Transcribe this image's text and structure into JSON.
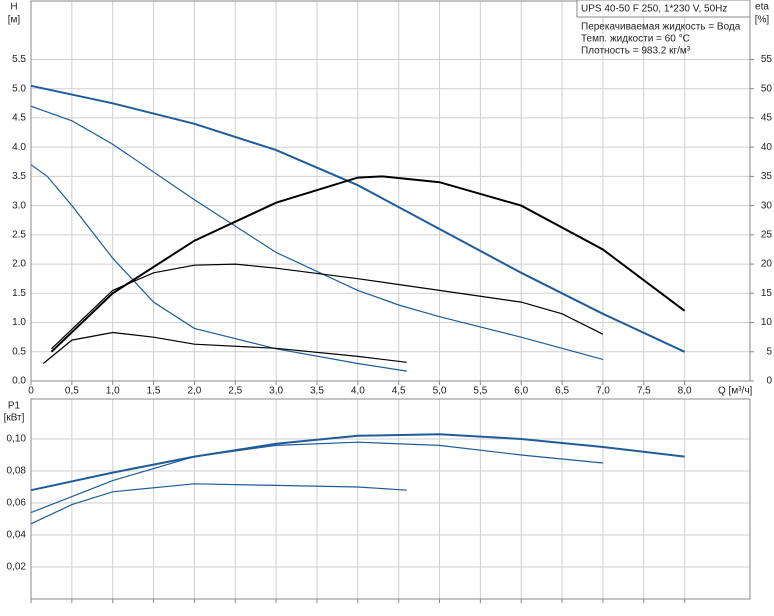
{
  "chart_data": [
    {
      "type": "line",
      "y_label": "H",
      "y_unit": "[м]",
      "y2_label": "eta",
      "y2_unit": "[%]",
      "x_label": "Q [м³/ч]",
      "legend_title": "UPS 40-50 F 250, 1*230 V, 50Hz",
      "notes": [
        "Перекачиваемая жидкость = Вода",
        "Темп. жидкости = 60 °C",
        "Плотность = 983.2 кг/м³"
      ],
      "xlim": [
        0,
        8.8
      ],
      "ylim": [
        0,
        6.5
      ],
      "y2lim": [
        0,
        65
      ],
      "grid": true,
      "xticks": [
        0,
        {
          "value": 0.5,
          "label": "0,5"
        },
        {
          "value": 1,
          "label": "1,0"
        },
        {
          "value": 1.5,
          "label": "1,5"
        },
        {
          "value": 2,
          "label": "2,0"
        },
        {
          "value": 2.5,
          "label": "2,5"
        },
        {
          "value": 3,
          "label": "3,0"
        },
        {
          "value": 3.5,
          "label": "3,5"
        },
        {
          "value": 4,
          "label": "4,0"
        },
        {
          "value": 4.5,
          "label": "4,5"
        },
        {
          "value": 5,
          "label": "5,0"
        },
        {
          "value": 5.5,
          "label": "5,5"
        },
        {
          "value": 6,
          "label": "6,0"
        },
        {
          "value": 6.5,
          "label": "6,5"
        },
        {
          "value": 7,
          "label": "7,0"
        },
        {
          "value": 7.5,
          "label": "7,5"
        },
        {
          "value": 8,
          "label": "8,0"
        }
      ],
      "yticks": [
        {
          "value": 0,
          "label": "0.0"
        },
        {
          "value": 0.5,
          "label": "0.5"
        },
        {
          "value": 1,
          "label": "1.0"
        },
        {
          "value": 1.5,
          "label": "1.5"
        },
        {
          "value": 2,
          "label": "2.0"
        },
        {
          "value": 2.5,
          "label": "2.5"
        },
        {
          "value": 3,
          "label": "3.0"
        },
        {
          "value": 3.5,
          "label": "3.5"
        },
        {
          "value": 4,
          "label": "4.0"
        },
        {
          "value": 4.5,
          "label": "4.5"
        },
        {
          "value": 5,
          "label": "5.0"
        },
        {
          "value": 5.5,
          "label": "5.5"
        }
      ],
      "y2ticks": [
        0,
        5,
        10,
        15,
        20,
        25,
        30,
        35,
        40,
        45,
        50,
        55
      ],
      "series": [
        {
          "color": "#1f5c99",
          "width": 2,
          "x": [
            0,
            1,
            2,
            3,
            4,
            5,
            6,
            7,
            8
          ],
          "values": [
            5.05,
            4.75,
            4.4,
            3.95,
            3.35,
            2.6,
            1.85,
            1.15,
            0.5
          ]
        },
        {
          "color": "#1f5c99",
          "width": 1.2,
          "x": [
            0,
            0.5,
            1,
            2,
            3,
            4,
            4.5,
            5,
            6,
            7
          ],
          "values": [
            4.7,
            4.45,
            4.05,
            3.1,
            2.2,
            1.55,
            1.3,
            1.1,
            0.75,
            0.37
          ]
        },
        {
          "color": "#1f5c99",
          "width": 1.2,
          "x": [
            0,
            0.2,
            0.5,
            1,
            1.5,
            2,
            3,
            4,
            4.6
          ],
          "values": [
            3.7,
            3.5,
            3.0,
            2.1,
            1.35,
            0.9,
            0.55,
            0.3,
            0.17
          ]
        },
        {
          "color": "#000000",
          "width": 2,
          "axis": "y2",
          "x": [
            0.25,
            1,
            2,
            3,
            4,
            4.3,
            5,
            6,
            7,
            8
          ],
          "values": [
            5,
            15,
            24,
            30.5,
            34.8,
            35,
            34,
            30,
            22.5,
            12
          ]
        },
        {
          "color": "#000000",
          "width": 1.2,
          "axis": "y2",
          "x": [
            0.25,
            1,
            1.5,
            2,
            2.5,
            3,
            4,
            5,
            6,
            6.5,
            7
          ],
          "values": [
            5.5,
            15.5,
            18.5,
            19.8,
            20,
            19.3,
            17.5,
            15.5,
            13.5,
            11.5,
            8
          ]
        },
        {
          "color": "#000000",
          "width": 1.2,
          "axis": "y2",
          "x": [
            0.15,
            0.5,
            1,
            1.5,
            2,
            3,
            4,
            4.6
          ],
          "values": [
            3,
            7,
            8.3,
            7.5,
            6.3,
            5.6,
            4.2,
            3.2
          ]
        }
      ]
    },
    {
      "type": "line",
      "y_label": "P1",
      "y_unit": "[кВт]",
      "xlim": [
        0,
        8.8
      ],
      "ylim": [
        0,
        0.125
      ],
      "grid": true,
      "yticks": [
        {
          "value": 0.02,
          "label": "0,02"
        },
        {
          "value": 0.04,
          "label": "0,04"
        },
        {
          "value": 0.06,
          "label": "0,06"
        },
        {
          "value": 0.08,
          "label": "0,08"
        },
        {
          "value": 0.1,
          "label": "0,10"
        }
      ],
      "series": [
        {
          "color": "#1f5c99",
          "width": 2,
          "x": [
            0,
            1,
            2,
            3,
            4,
            5,
            6,
            7,
            8
          ],
          "values": [
            0.068,
            0.079,
            0.089,
            0.097,
            0.102,
            0.103,
            0.1,
            0.095,
            0.089
          ]
        },
        {
          "color": "#1f5c99",
          "width": 1.2,
          "x": [
            0,
            1,
            2,
            3,
            4,
            5,
            6,
            7
          ],
          "values": [
            0.054,
            0.074,
            0.089,
            0.096,
            0.098,
            0.096,
            0.09,
            0.085
          ]
        },
        {
          "color": "#1f5c99",
          "width": 1.2,
          "x": [
            0,
            0.5,
            1,
            2,
            3,
            4,
            4.6
          ],
          "values": [
            0.047,
            0.059,
            0.067,
            0.072,
            0.071,
            0.07,
            0.068
          ]
        }
      ]
    }
  ]
}
